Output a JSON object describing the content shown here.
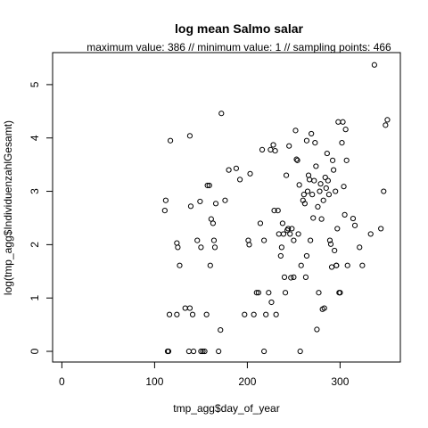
{
  "chart_data": {
    "type": "scatter",
    "title": "log mean Salmo salar",
    "subtitle": "maximum value: 386  //  minimum value: 1  // sampling points: 466",
    "xlabel": "tmp_agg$day_of_year",
    "ylabel": "log(tmp_agg$IndividuenzahlGesamt)",
    "xlim": [
      -10,
      365
    ],
    "ylim": [
      -0.2,
      5.6
    ],
    "xticks": [
      0,
      100,
      200,
      300
    ],
    "yticks": [
      0,
      1,
      2,
      3,
      4,
      5
    ],
    "grid": false,
    "legend": "none",
    "marker": "open-circle",
    "color": "#000000",
    "points": [
      [
        112,
        2.83
      ],
      [
        111,
        2.64
      ],
      [
        114,
        0.0
      ],
      [
        115,
        0.0
      ],
      [
        116,
        0.69
      ],
      [
        117,
        3.95
      ],
      [
        124,
        2.03
      ],
      [
        125,
        1.95
      ],
      [
        127,
        1.61
      ],
      [
        124,
        0.69
      ],
      [
        133,
        0.81
      ],
      [
        138,
        4.04
      ],
      [
        138,
        0.81
      ],
      [
        139,
        2.72
      ],
      [
        141,
        0.69
      ],
      [
        137,
        0.0
      ],
      [
        142,
        0.0
      ],
      [
        146,
        2.08
      ],
      [
        149,
        2.81
      ],
      [
        150,
        1.95
      ],
      [
        150,
        0.0
      ],
      [
        152,
        0.0
      ],
      [
        154,
        0.0
      ],
      [
        156,
        0.69
      ],
      [
        157,
        3.11
      ],
      [
        159,
        3.11
      ],
      [
        160,
        1.61
      ],
      [
        161,
        2.48
      ],
      [
        163,
        2.4
      ],
      [
        164,
        2.08
      ],
      [
        165,
        1.95
      ],
      [
        166,
        2.77
      ],
      [
        169,
        0.0
      ],
      [
        171,
        0.4
      ],
      [
        172,
        4.46
      ],
      [
        176,
        2.83
      ],
      [
        180,
        3.4
      ],
      [
        188,
        3.43
      ],
      [
        192,
        3.22
      ],
      [
        197,
        0.69
      ],
      [
        201,
        2.08
      ],
      [
        202,
        2.0
      ],
      [
        203,
        3.33
      ],
      [
        207,
        0.69
      ],
      [
        210,
        1.1
      ],
      [
        212,
        1.1
      ],
      [
        214,
        2.4
      ],
      [
        216,
        3.78
      ],
      [
        218,
        0.0
      ],
      [
        218,
        2.08
      ],
      [
        220,
        0.69
      ],
      [
        223,
        1.1
      ],
      [
        225,
        3.78
      ],
      [
        226,
        0.92
      ],
      [
        228,
        3.87
      ],
      [
        229,
        2.64
      ],
      [
        230,
        3.76
      ],
      [
        231,
        0.69
      ],
      [
        233,
        2.64
      ],
      [
        234,
        2.2
      ],
      [
        236,
        1.79
      ],
      [
        237,
        1.95
      ],
      [
        238,
        2.4
      ],
      [
        239,
        2.2
      ],
      [
        240,
        1.39
      ],
      [
        241,
        1.1
      ],
      [
        242,
        3.3
      ],
      [
        243,
        2.27
      ],
      [
        244,
        2.3
      ],
      [
        245,
        3.85
      ],
      [
        246,
        2.2
      ],
      [
        247,
        1.38
      ],
      [
        248,
        2.3
      ],
      [
        250,
        2.08
      ],
      [
        250,
        1.39
      ],
      [
        252,
        4.14
      ],
      [
        253,
        3.6
      ],
      [
        254,
        3.58
      ],
      [
        255,
        2.2
      ],
      [
        256,
        3.12
      ],
      [
        257,
        0.0
      ],
      [
        258,
        1.61
      ],
      [
        260,
        2.83
      ],
      [
        261,
        2.94
      ],
      [
        262,
        2.77
      ],
      [
        263,
        1.39
      ],
      [
        264,
        1.79
      ],
      [
        264,
        3.95
      ],
      [
        265,
        3.0
      ],
      [
        266,
        3.3
      ],
      [
        267,
        3.22
      ],
      [
        268,
        2.08
      ],
      [
        269,
        4.08
      ],
      [
        270,
        2.94
      ],
      [
        271,
        2.5
      ],
      [
        272,
        3.2
      ],
      [
        273,
        3.91
      ],
      [
        274,
        3.47
      ],
      [
        275,
        0.41
      ],
      [
        276,
        2.71
      ],
      [
        277,
        1.1
      ],
      [
        278,
        3.0
      ],
      [
        279,
        3.14
      ],
      [
        280,
        2.48
      ],
      [
        281,
        0.79
      ],
      [
        282,
        2.83
      ],
      [
        283,
        0.81
      ],
      [
        284,
        3.26
      ],
      [
        285,
        3.06
      ],
      [
        286,
        3.71
      ],
      [
        287,
        3.2
      ],
      [
        288,
        2.94
      ],
      [
        289,
        2.08
      ],
      [
        290,
        2.01
      ],
      [
        291,
        1.58
      ],
      [
        292,
        3.58
      ],
      [
        293,
        3.4
      ],
      [
        294,
        1.89
      ],
      [
        295,
        3.0
      ],
      [
        296,
        1.61
      ],
      [
        297,
        2.3
      ],
      [
        298,
        4.3
      ],
      [
        299,
        1.1
      ],
      [
        300,
        1.1
      ],
      [
        302,
        3.91
      ],
      [
        303,
        4.3
      ],
      [
        304,
        3.09
      ],
      [
        305,
        2.56
      ],
      [
        306,
        4.16
      ],
      [
        307,
        3.58
      ],
      [
        308,
        1.61
      ],
      [
        314,
        2.49
      ],
      [
        316,
        2.36
      ],
      [
        324,
        1.61
      ],
      [
        333,
        2.2
      ],
      [
        337,
        5.37
      ],
      [
        344,
        2.3
      ],
      [
        347,
        3.0
      ],
      [
        349,
        4.24
      ],
      [
        351,
        4.34
      ],
      [
        321,
        1.95
      ],
      [
        296,
        1.61
      ]
    ]
  }
}
